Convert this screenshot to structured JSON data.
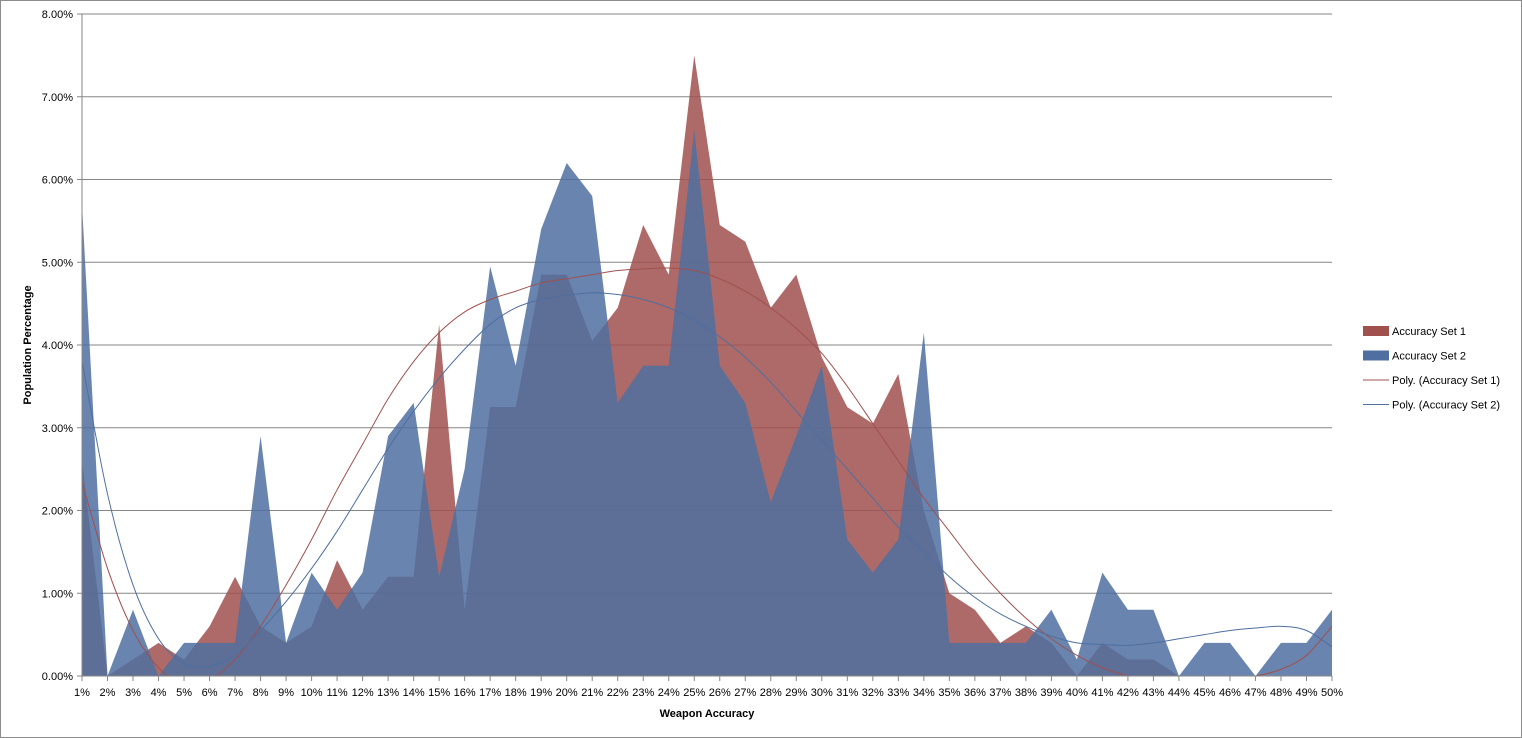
{
  "chart_data": {
    "type": "area",
    "title": "",
    "xlabel": "Weapon Accuracy",
    "ylabel": "Population Percentage",
    "ylim": [
      0,
      0.08
    ],
    "y_ticks": [
      0,
      0.01,
      0.02,
      0.03,
      0.04,
      0.05,
      0.06,
      0.07,
      0.08
    ],
    "y_tick_labels": [
      "0.00%",
      "1.00%",
      "2.00%",
      "3.00%",
      "4.00%",
      "5.00%",
      "6.00%",
      "7.00%",
      "8.00%"
    ],
    "grid": "horizontal",
    "legend_position": "right",
    "categories": [
      "1%",
      "2%",
      "3%",
      "4%",
      "5%",
      "6%",
      "7%",
      "8%",
      "9%",
      "10%",
      "11%",
      "12%",
      "13%",
      "14%",
      "15%",
      "16%",
      "17%",
      "18%",
      "19%",
      "20%",
      "21%",
      "22%",
      "23%",
      "24%",
      "25%",
      "26%",
      "27%",
      "28%",
      "29%",
      "30%",
      "31%",
      "32%",
      "33%",
      "34%",
      "35%",
      "36%",
      "37%",
      "38%",
      "39%",
      "40%",
      "41%",
      "42%",
      "43%",
      "44%",
      "45%",
      "46%",
      "47%",
      "48%",
      "49%",
      "50%"
    ],
    "series": [
      {
        "name": "Accuracy Set 1",
        "kind": "area",
        "color": "#a0504d",
        "values": [
          0.026,
          0.0,
          0.002,
          0.004,
          0.002,
          0.006,
          0.012,
          0.006,
          0.004,
          0.006,
          0.014,
          0.008,
          0.012,
          0.012,
          0.0425,
          0.008,
          0.0325,
          0.0325,
          0.0485,
          0.0485,
          0.0405,
          0.0445,
          0.0545,
          0.0485,
          0.075,
          0.0545,
          0.0525,
          0.0445,
          0.0485,
          0.0385,
          0.0325,
          0.0305,
          0.0365,
          0.02,
          0.01,
          0.008,
          0.004,
          0.006,
          0.004,
          0.0,
          0.004,
          0.002,
          0.002,
          0.0,
          0.0,
          0.0,
          0.0,
          0.0,
          0.0,
          0.0
        ]
      },
      {
        "name": "Accuracy Set 2",
        "kind": "area",
        "color": "#4f6fa0",
        "values": [
          0.057,
          0.0,
          0.008,
          0.0,
          0.004,
          0.004,
          0.004,
          0.029,
          0.004,
          0.0125,
          0.008,
          0.0125,
          0.029,
          0.033,
          0.012,
          0.025,
          0.0495,
          0.0375,
          0.054,
          0.062,
          0.058,
          0.033,
          0.0375,
          0.0375,
          0.066,
          0.0375,
          0.033,
          0.021,
          0.029,
          0.0375,
          0.0165,
          0.0125,
          0.0165,
          0.0415,
          0.004,
          0.004,
          0.004,
          0.004,
          0.008,
          0.002,
          0.0125,
          0.008,
          0.008,
          0.0,
          0.004,
          0.004,
          0.0,
          0.004,
          0.004,
          0.008
        ]
      },
      {
        "name": "Poly. (Accuracy Set 1)",
        "kind": "trendline",
        "color": "#a0504d",
        "values": [
          0.0235,
          0.013,
          0.0055,
          0.001,
          -0.001,
          -0.0005,
          0.002,
          0.006,
          0.011,
          0.0165,
          0.0225,
          0.028,
          0.0335,
          0.038,
          0.0415,
          0.044,
          0.0455,
          0.0465,
          0.0475,
          0.048,
          0.0485,
          0.049,
          0.0492,
          0.0493,
          0.049,
          0.048,
          0.0465,
          0.0445,
          0.042,
          0.039,
          0.035,
          0.0305,
          0.026,
          0.0215,
          0.0175,
          0.0135,
          0.01,
          0.007,
          0.0045,
          0.0025,
          0.001,
          0.0,
          -0.0008,
          -0.0012,
          -0.001,
          -0.0005,
          0.0,
          0.0008,
          0.0025,
          0.006
        ]
      },
      {
        "name": "Poly. (Accuracy Set 2)",
        "kind": "trendline",
        "color": "#4f6fa0",
        "values": [
          0.038,
          0.022,
          0.011,
          0.0045,
          0.0015,
          0.0012,
          0.0025,
          0.0055,
          0.009,
          0.013,
          0.0175,
          0.0225,
          0.0275,
          0.032,
          0.036,
          0.0395,
          0.0425,
          0.0445,
          0.0455,
          0.046,
          0.0463,
          0.0461,
          0.0455,
          0.0445,
          0.043,
          0.041,
          0.0385,
          0.0355,
          0.032,
          0.0285,
          0.025,
          0.0215,
          0.018,
          0.015,
          0.012,
          0.0095,
          0.0075,
          0.006,
          0.0048,
          0.004,
          0.0038,
          0.0037,
          0.004,
          0.0045,
          0.005,
          0.0055,
          0.0058,
          0.006,
          0.0055,
          0.0035
        ]
      }
    ]
  }
}
